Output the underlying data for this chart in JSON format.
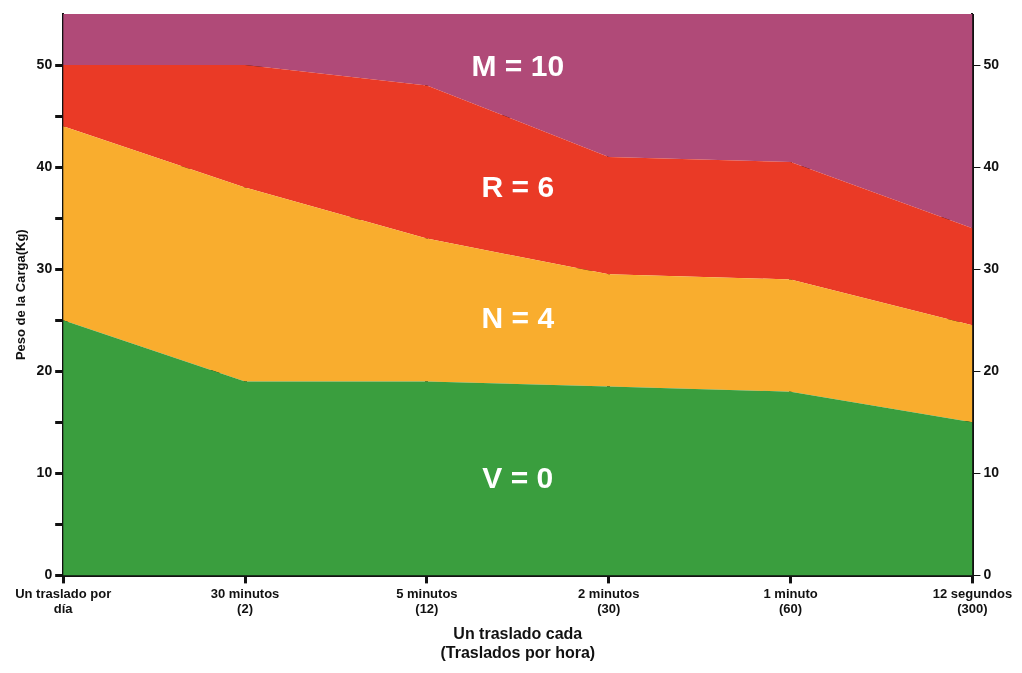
{
  "chart_data": {
    "type": "area",
    "stacked": true,
    "xlabel": "Un traslado cada\n(Traslados por hora)",
    "ylabel": "Peso de la Carga(Kg)",
    "categories": [
      "Un traslado por\ndía",
      "30 minutos\n(2)",
      "5 minutos\n(12)",
      "2 minutos\n(30)",
      "1 minuto\n(60)",
      "12 segundos\n(300)"
    ],
    "series": [
      {
        "name": "V = 0",
        "color": "#3a9e3e",
        "values": [
          25,
          19,
          19,
          18.5,
          18,
          15
        ]
      },
      {
        "name": "N = 4",
        "color": "#f9ad2e",
        "values": [
          19,
          19,
          14,
          11,
          11,
          9.5
        ]
      },
      {
        "name": "R = 6",
        "color": "#ea3a26",
        "values": [
          6,
          12,
          15,
          11.5,
          11.5,
          9.5
        ]
      },
      {
        "name": "M = 10",
        "color": "#b04a78",
        "values": [
          5,
          5,
          7,
          14,
          14.5,
          21
        ]
      }
    ],
    "ylim": [
      0,
      55
    ],
    "yticks": [
      0,
      {
        "value": 5,
        "label": null
      },
      10,
      {
        "value": 15,
        "label": null
      },
      20,
      {
        "value": 25,
        "label": null
      },
      30,
      {
        "value": 35,
        "label": null
      },
      40,
      {
        "value": 45,
        "label": null
      },
      50
    ],
    "y2lim": [
      0,
      55
    ],
    "y2ticks": [
      0,
      10,
      20,
      30,
      40,
      50
    ],
    "grid": true,
    "legend": false,
    "marker": "none"
  }
}
